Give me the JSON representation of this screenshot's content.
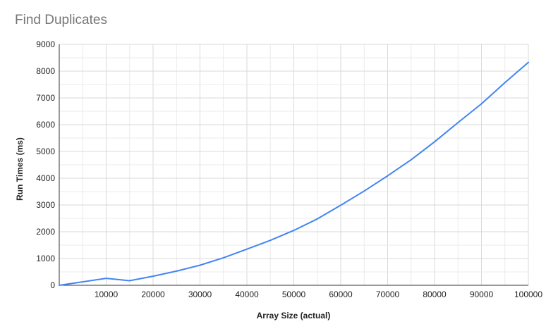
{
  "chart_data": {
    "type": "line",
    "title": "Find Duplicates",
    "xlabel": "Array Size (actual)",
    "ylabel": "Run Times (ms)",
    "xlim": [
      0,
      100000
    ],
    "ylim": [
      0,
      9000
    ],
    "x_ticks": [
      10000,
      20000,
      30000,
      40000,
      50000,
      60000,
      70000,
      80000,
      90000,
      100000
    ],
    "y_ticks": [
      0,
      1000,
      2000,
      3000,
      4000,
      5000,
      6000,
      7000,
      8000,
      9000
    ],
    "grid": true,
    "series": [
      {
        "color": "#4285f4",
        "x": [
          0,
          5000,
          10000,
          15000,
          20000,
          25000,
          30000,
          35000,
          40000,
          45000,
          50000,
          55000,
          60000,
          65000,
          70000,
          75000,
          80000,
          85000,
          90000,
          95000,
          100000
        ],
        "y": [
          0,
          130,
          260,
          170,
          340,
          530,
          750,
          1030,
          1350,
          1680,
          2050,
          2480,
          2990,
          3520,
          4090,
          4690,
          5360,
          6080,
          6780,
          7570,
          8330
        ]
      }
    ]
  }
}
